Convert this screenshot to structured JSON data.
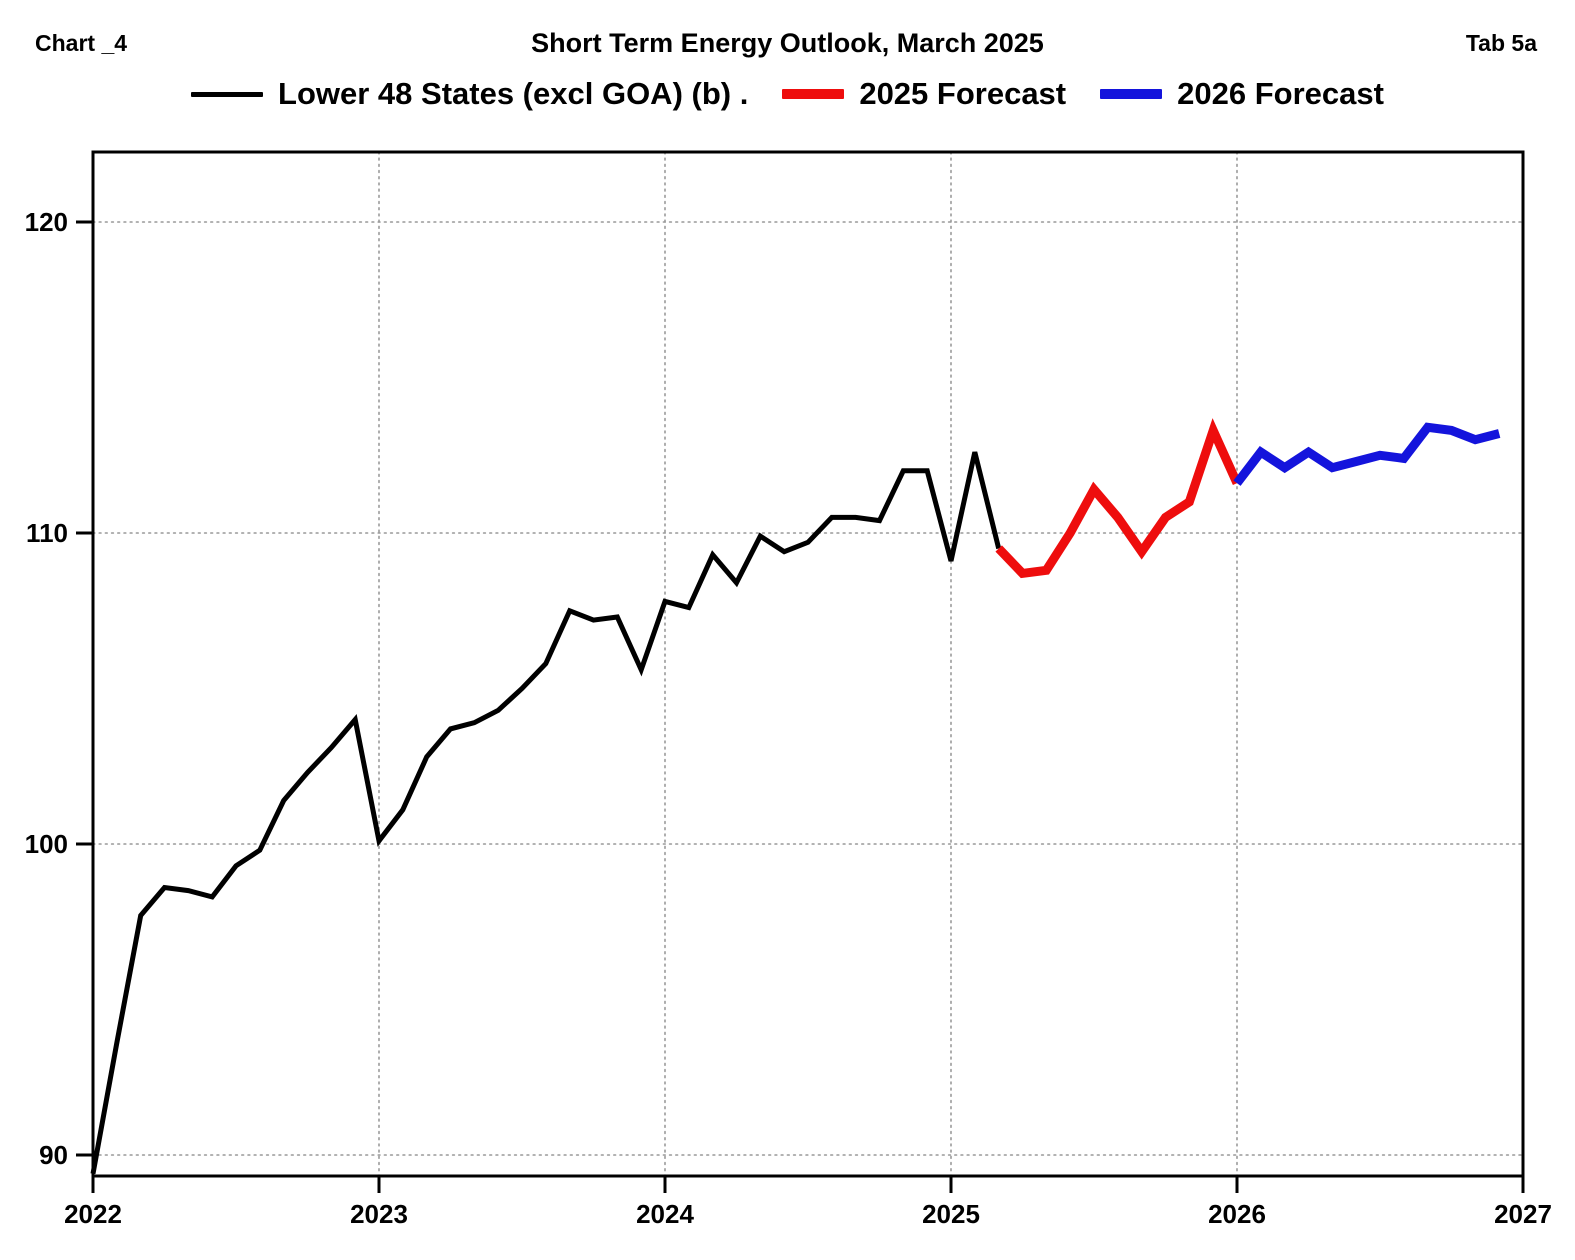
{
  "header": {
    "chart_label": "Chart _4",
    "title": "Short Term Energy Outlook, March 2025",
    "tab_label": "Tab 5a"
  },
  "legend": {
    "items": [
      {
        "label": "Lower 48 States (excl GOA) (b) .",
        "color": "#000000",
        "swatch_width": 72,
        "swatch_height": 5
      },
      {
        "label": "2025 Forecast",
        "color": "#ee0d0d",
        "swatch_width": 62,
        "swatch_height": 10
      },
      {
        "label": "2026 Forecast",
        "color": "#1414dc",
        "swatch_width": 62,
        "swatch_height": 10
      }
    ]
  },
  "chart_data": {
    "type": "line",
    "title": "Short Term Energy Outlook, March 2025",
    "xlabel": "",
    "ylabel": "",
    "xlim": [
      2022,
      2027
    ],
    "ylim": [
      89.3,
      122.3
    ],
    "grid": "dotted",
    "legend_position": "top",
    "x_tick_labels": [
      "2022",
      "2023",
      "2024",
      "2025",
      "2026",
      "2027"
    ],
    "x_tick_values": [
      2022,
      2023,
      2024,
      2025,
      2026,
      2027
    ],
    "y_tick_labels": [
      "90",
      "100",
      "110",
      "120"
    ],
    "y_tick_values": [
      90,
      100,
      110,
      120
    ],
    "x_gridline_values": [
      2023,
      2024,
      2025,
      2026
    ],
    "y_gridline_values": [
      90,
      100,
      110,
      120
    ],
    "x_unit": "month",
    "x_start_label": "2022-01",
    "series": [
      {
        "name": "Lower 48 States (excl GOA) (b) .",
        "color": "#000000",
        "line_width": 5,
        "start_month_index": 0,
        "values": [
          89.4,
          93.6,
          97.7,
          98.6,
          98.5,
          98.3,
          99.3,
          99.8,
          101.4,
          102.3,
          103.1,
          104.0,
          100.1,
          101.1,
          102.8,
          103.7,
          103.9,
          104.3,
          105.0,
          105.8,
          107.5,
          107.2,
          107.3,
          105.6,
          107.8,
          107.6,
          109.3,
          108.4,
          109.9,
          109.4,
          109.7,
          110.5,
          110.5,
          110.4,
          112.0,
          112.0,
          109.1,
          112.6,
          109.5
        ]
      },
      {
        "name": "2025 Forecast",
        "color": "#ee0d0d",
        "line_width": 9,
        "start_month_index": 38,
        "values": [
          109.5,
          108.7,
          108.8,
          110.0,
          111.4,
          110.5,
          109.4,
          110.5,
          111.0,
          113.3,
          111.6
        ]
      },
      {
        "name": "2026 Forecast",
        "color": "#1414dc",
        "line_width": 9,
        "start_month_index": 48,
        "values": [
          111.6,
          112.6,
          112.1,
          112.6,
          112.1,
          112.3,
          112.5,
          112.4,
          113.4,
          113.3,
          113.0,
          113.2
        ]
      }
    ]
  }
}
